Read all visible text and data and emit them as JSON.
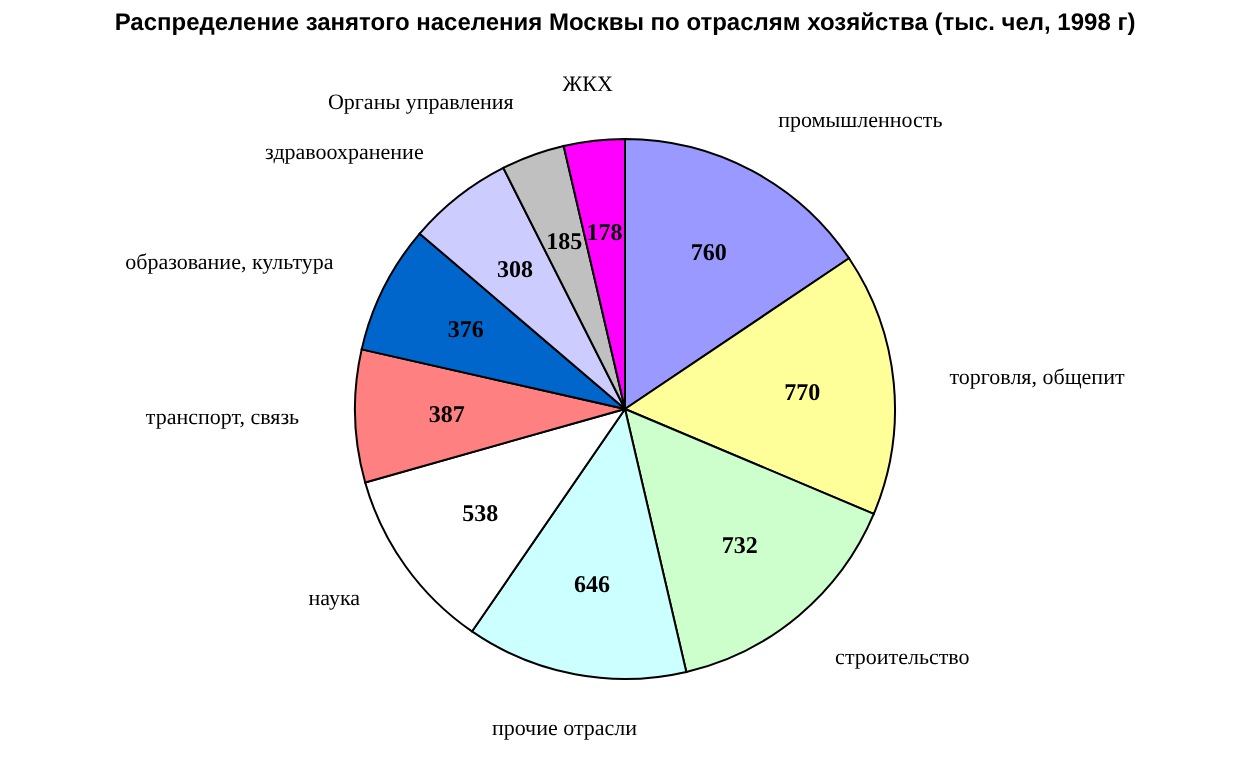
{
  "chart_data": {
    "type": "pie",
    "title": "Распределение занятого населения Москвы по отраслям хозяйства (тыс. чел, 1998 г)",
    "categories": [
      "промышленность",
      "торговля, общепит",
      "строительство",
      "прочие отрасли",
      "наука",
      "транспорт, связь",
      "образование, культура",
      "здравоохранение",
      "Органы управления",
      "ЖКХ"
    ],
    "values": [
      760,
      770,
      732,
      646,
      538,
      387,
      376,
      308,
      185,
      178
    ],
    "colors": [
      "#9999ff",
      "#ffff99",
      "#ccffcc",
      "#ccffff",
      "#ffffff",
      "#ff8080",
      "#0066cc",
      "#ccccff",
      "#c0c0c0",
      "#ff00ff"
    ],
    "data_labels": true,
    "legend": false
  }
}
